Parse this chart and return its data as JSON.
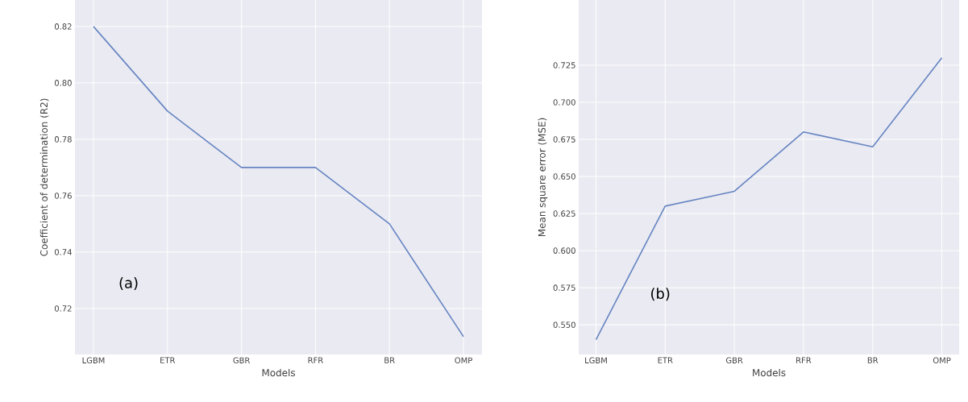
{
  "chart_data": [
    {
      "type": "line",
      "xlabel": "Models",
      "ylabel": "Coefficient of determination (R2)",
      "categories": [
        "LGBM",
        "ETR",
        "GBR",
        "RFR",
        "BR",
        "OMP"
      ],
      "series": [
        {
          "color": "#6685c2",
          "values": [
            0.82,
            0.79,
            0.77,
            0.77,
            0.75,
            0.71
          ]
        }
      ],
      "ylim": [
        0.7037,
        0.8294
      ],
      "yticks": [
        {
          "value": 0.72,
          "label": "0.72"
        },
        {
          "value": 0.74,
          "label": "0.74"
        },
        {
          "value": 0.76,
          "label": "0.76"
        },
        {
          "value": 0.78,
          "label": "0.78"
        },
        {
          "value": 0.8,
          "label": "0.80"
        },
        {
          "value": 0.82,
          "label": "0.82"
        }
      ],
      "grid": true,
      "annotations": [
        "(a)"
      ]
    },
    {
      "type": "line",
      "xlabel": "Models",
      "ylabel": "Mean square error (MSE)",
      "categories": [
        "LGBM",
        "ETR",
        "GBR",
        "RFR",
        "BR",
        "OMP"
      ],
      "series": [
        {
          "color": "#6685c2",
          "values": [
            0.54,
            0.63,
            0.64,
            0.68,
            0.67,
            0.73
          ]
        }
      ],
      "ylim": [
        0.53,
        0.769
      ],
      "yticks": [
        {
          "value": 0.55,
          "label": "0.550"
        },
        {
          "value": 0.575,
          "label": "0.575"
        },
        {
          "value": 0.6,
          "label": "0.600"
        },
        {
          "value": 0.625,
          "label": "0.625"
        },
        {
          "value": 0.65,
          "label": "0.650"
        },
        {
          "value": 0.675,
          "label": "0.675"
        },
        {
          "value": 0.7,
          "label": "0.700"
        },
        {
          "value": 0.725,
          "label": "0.725"
        }
      ],
      "grid": true,
      "annotations": [
        "(b)"
      ]
    }
  ]
}
